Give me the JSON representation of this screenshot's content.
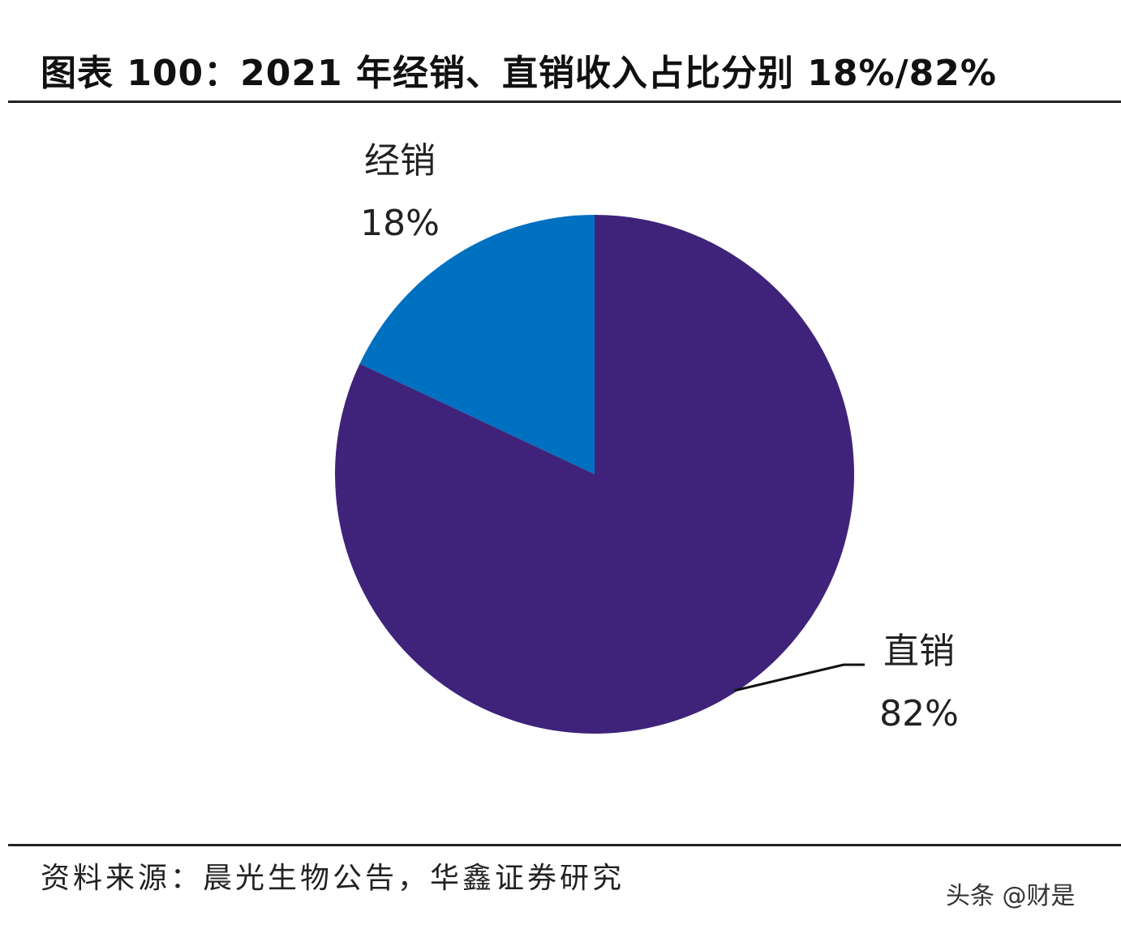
{
  "title": "图表 100：2021 年经销、直销收入占比分别 18%/82%",
  "source": "资料来源：晨光生物公告，华鑫证券研究",
  "watermark": "头条 @财是",
  "chart_data": {
    "type": "pie",
    "title": "图表 100：2021 年经销、直销收入占比分别 18%/82%",
    "categories": [
      "经销",
      "直销"
    ],
    "values": [
      18,
      82
    ],
    "data_labels": [
      "18%",
      "82%"
    ],
    "colors": [
      "#0070C0",
      "#3F237A"
    ],
    "start_angle": "12 o'clock",
    "legend": "none"
  }
}
